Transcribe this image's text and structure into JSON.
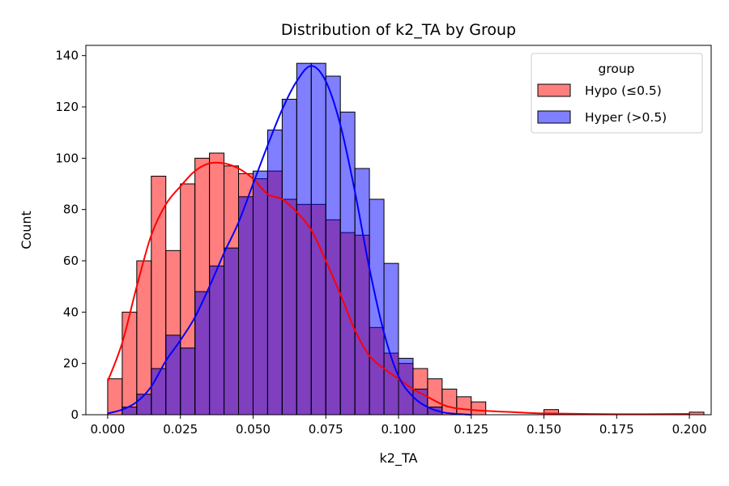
{
  "chart_data": {
    "type": "histogram",
    "title": "Distribution of k2_TA by Group",
    "xlabel": "k2_TA",
    "ylabel": "Count",
    "xlim": [
      -0.0075,
      0.2075
    ],
    "ylim": [
      0,
      144
    ],
    "x_ticks": [
      "0.000",
      "0.025",
      "0.050",
      "0.075",
      "0.100",
      "0.125",
      "0.150",
      "0.175",
      "0.200"
    ],
    "x_tick_values": [
      0,
      0.025,
      0.05,
      0.075,
      0.1,
      0.125,
      0.15,
      0.175,
      0.2
    ],
    "y_ticks": [
      "0",
      "20",
      "40",
      "60",
      "80",
      "100",
      "120",
      "140"
    ],
    "y_tick_values": [
      0,
      20,
      40,
      60,
      80,
      100,
      120,
      140
    ],
    "bin_start": 0,
    "bin_width": 0.005,
    "grid": false,
    "legend": {
      "title": "group",
      "placement": "top-right"
    },
    "series": [
      {
        "name": "Hypo (≤0.5)",
        "color": "#ff0000",
        "bar_fill": "rgba(255,0,0,0.5)",
        "values": [
          14,
          40,
          60,
          93,
          64,
          90,
          100,
          102,
          97,
          94,
          92,
          95,
          84,
          82,
          82,
          76,
          71,
          70,
          34,
          24,
          20,
          18,
          14,
          10,
          7,
          5,
          0,
          0,
          0,
          0,
          2,
          0,
          0,
          0,
          0,
          0,
          0,
          0,
          0,
          0,
          1
        ],
        "kde": [
          [
            0,
            13
          ],
          [
            0.005,
            28
          ],
          [
            0.01,
            50
          ],
          [
            0.015,
            70
          ],
          [
            0.02,
            82
          ],
          [
            0.025,
            89
          ],
          [
            0.03,
            95
          ],
          [
            0.035,
            98
          ],
          [
            0.04,
            98
          ],
          [
            0.045,
            96
          ],
          [
            0.05,
            92
          ],
          [
            0.055,
            86
          ],
          [
            0.06,
            84
          ],
          [
            0.065,
            79
          ],
          [
            0.07,
            72
          ],
          [
            0.075,
            60
          ],
          [
            0.08,
            47
          ],
          [
            0.085,
            33
          ],
          [
            0.09,
            23
          ],
          [
            0.095,
            18
          ],
          [
            0.1,
            14
          ],
          [
            0.105,
            10
          ],
          [
            0.11,
            7
          ],
          [
            0.115,
            4
          ],
          [
            0.12,
            2.5
          ],
          [
            0.13,
            1.5
          ],
          [
            0.14,
            1
          ],
          [
            0.15,
            0.5
          ],
          [
            0.175,
            0.2
          ],
          [
            0.2,
            0.3
          ]
        ]
      },
      {
        "name": "Hyper (>0.5)",
        "color": "#0000ff",
        "bar_fill": "rgba(0,0,255,0.5)",
        "values": [
          0,
          3,
          8,
          18,
          31,
          26,
          48,
          58,
          65,
          85,
          95,
          111,
          123,
          137,
          137,
          132,
          118,
          96,
          84,
          59,
          22,
          10,
          3,
          0,
          0,
          0,
          0,
          0,
          0,
          0,
          0,
          0,
          0,
          0,
          0,
          0,
          0,
          0,
          0,
          0,
          0
        ],
        "kde": [
          [
            0,
            0.5
          ],
          [
            0.005,
            2
          ],
          [
            0.01,
            5
          ],
          [
            0.015,
            11
          ],
          [
            0.02,
            21
          ],
          [
            0.025,
            29
          ],
          [
            0.03,
            38
          ],
          [
            0.035,
            50
          ],
          [
            0.04,
            63
          ],
          [
            0.045,
            75
          ],
          [
            0.05,
            90
          ],
          [
            0.055,
            105
          ],
          [
            0.06,
            119
          ],
          [
            0.065,
            130
          ],
          [
            0.07,
            136
          ],
          [
            0.075,
            130
          ],
          [
            0.08,
            113
          ],
          [
            0.085,
            87
          ],
          [
            0.09,
            57
          ],
          [
            0.095,
            32
          ],
          [
            0.1,
            15
          ],
          [
            0.105,
            7
          ],
          [
            0.11,
            3
          ],
          [
            0.115,
            1
          ],
          [
            0.12,
            0.3
          ],
          [
            0.125,
            0
          ]
        ]
      }
    ]
  }
}
